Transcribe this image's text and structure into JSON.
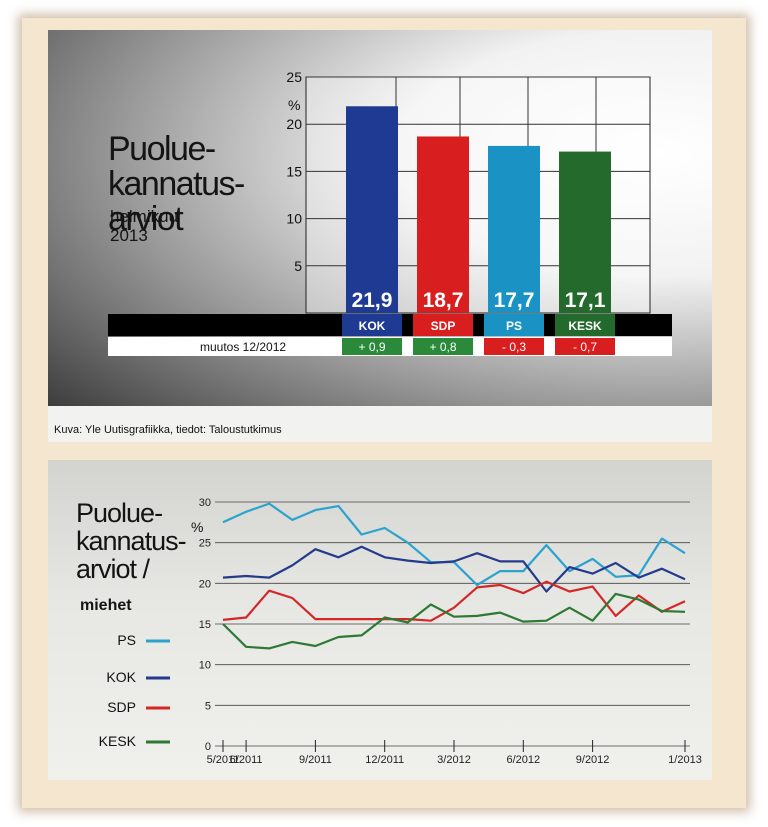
{
  "chart_data": [
    {
      "type": "bar",
      "title_lines": [
        "Puolue-",
        "kannatus-",
        "arviot"
      ],
      "subtitle_lines": [
        "helmikuu",
        "2013"
      ],
      "ylabel": "%",
      "ylim": [
        0,
        25
      ],
      "yticks": [
        "5",
        "10",
        "15",
        "20",
        "25"
      ],
      "categories": [
        "KOK",
        "SDP",
        "PS",
        "KESK"
      ],
      "values": [
        21.9,
        18.7,
        17.7,
        17.1
      ],
      "value_labels": [
        "21,9",
        "18,7",
        "17,7",
        "17,1"
      ],
      "colors": [
        "#1f3a93",
        "#d81e1e",
        "#1a93c4",
        "#236a2c"
      ],
      "change_label": "muutos 12/2012",
      "changes": [
        "+ 0,9",
        "+ 0,8",
        "- 0,3",
        "- 0,7"
      ],
      "change_colors": [
        "#2a8a3a",
        "#2a8a3a",
        "#d81e1e",
        "#d81e1e"
      ],
      "source": "Kuva: Yle Uutisgrafiikka, tiedot: Taloustutkimus",
      "grid": true
    },
    {
      "type": "line",
      "title_lines": [
        "Puolue-",
        "kannatus-",
        "arviot /"
      ],
      "title_bold": "miehet",
      "ylabel": "%",
      "ylim": [
        0,
        30
      ],
      "yticks": [
        "0",
        "5",
        "10",
        "15",
        "20",
        "25",
        "30"
      ],
      "x": [
        "5/2011",
        "6/2011",
        "7/2011",
        "8/2011",
        "9/2011",
        "10/2011",
        "11/2011",
        "12/2011",
        "1/2012",
        "2/2012",
        "3/2012",
        "4/2012",
        "5/2012",
        "6/2012",
        "7/2012",
        "8/2012",
        "9/2012",
        "10/2012",
        "11/2012",
        "12/2012",
        "1/2013"
      ],
      "xtick_labels": [
        "5/2011",
        "6/2011",
        "9/2011",
        "12/2011",
        "3/2012",
        "6/2012",
        "9/2012",
        "1/2013"
      ],
      "series": [
        {
          "name": "PS",
          "color": "#2aa3cf",
          "values": [
            27.5,
            28.8,
            29.8,
            27.8,
            29,
            29.5,
            26,
            26.8,
            25,
            22.6,
            22.6,
            19.8,
            21.5,
            21.5,
            24.7,
            21.5,
            23,
            20.8,
            21,
            25.5,
            23.7
          ]
        },
        {
          "name": "KOK",
          "color": "#243a8c",
          "values": [
            20.7,
            20.9,
            20.7,
            22.2,
            24.2,
            23.2,
            24.5,
            23.2,
            22.8,
            22.5,
            22.7,
            23.7,
            22.7,
            22.7,
            19,
            22,
            21.2,
            22.5,
            20.7,
            21.8,
            20.5
          ]
        },
        {
          "name": "SDP",
          "color": "#d42828",
          "values": [
            15.5,
            15.8,
            19.1,
            18.2,
            15.6,
            15.6,
            15.6,
            15.6,
            15.6,
            15.4,
            17,
            19.5,
            19.8,
            18.8,
            20.2,
            19,
            19.6,
            16,
            18.5,
            16.5,
            17.8
          ]
        },
        {
          "name": "KESK",
          "color": "#2d7a34",
          "values": [
            15,
            12.2,
            12,
            12.8,
            12.3,
            13.4,
            13.6,
            15.8,
            15.2,
            17.4,
            15.9,
            16,
            16.4,
            15.3,
            15.4,
            17,
            15.4,
            18.7,
            18,
            16.6,
            16.5
          ]
        }
      ],
      "grid": true
    }
  ]
}
